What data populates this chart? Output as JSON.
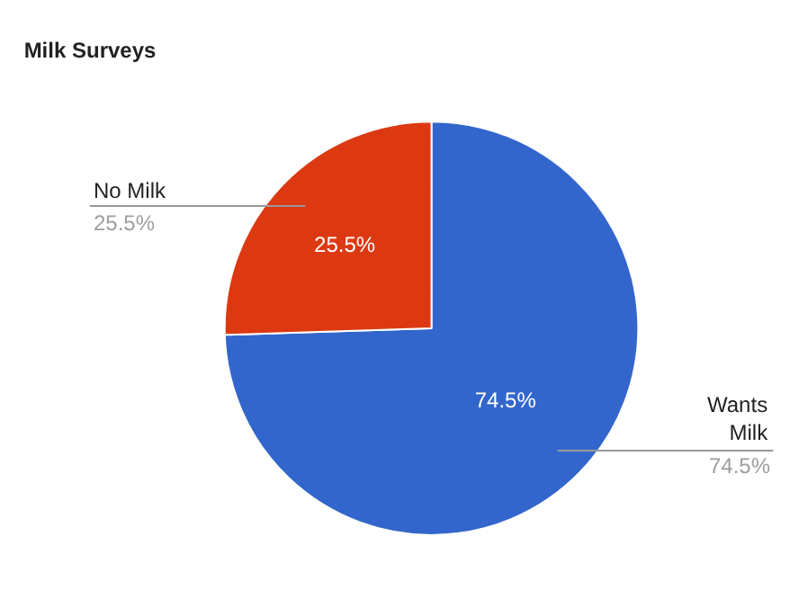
{
  "chart_data": {
    "type": "pie",
    "title": "Milk Surveys",
    "categories": [
      "Wants Milk",
      "No Milk"
    ],
    "values": [
      74.5,
      25.5
    ],
    "colors": [
      "#3366cc",
      "#dc3912"
    ],
    "value_labels": [
      "74.5%",
      "25.5%"
    ],
    "legend": false
  }
}
